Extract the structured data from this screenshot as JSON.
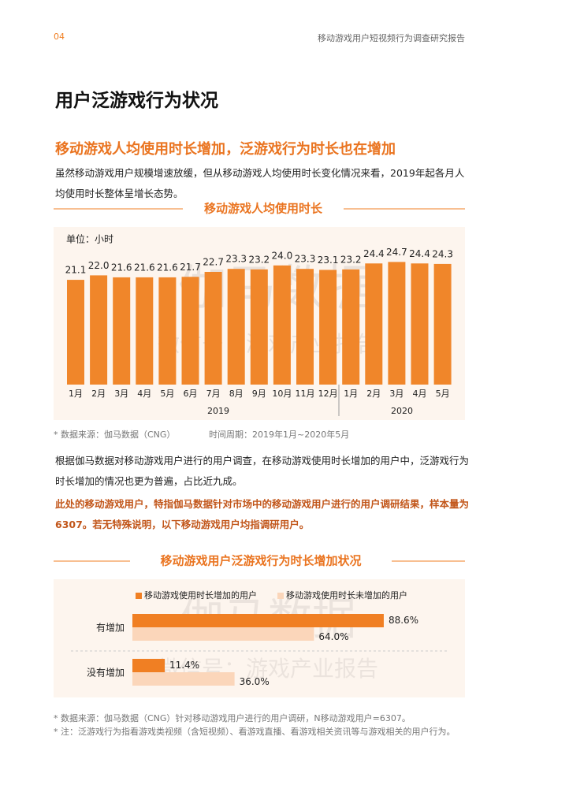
{
  "header": {
    "page": "04",
    "title": "移动游戏用户短视频行为调查研究报告"
  },
  "title": "用户泛游戏行为状况",
  "section1": {
    "subtitle": "移动游戏人均使用时长增加，泛游戏行为时长也在增加",
    "paragraph": "虽然移动游戏用户规模增速放缓，但从移动游戏人均使用时长变化情况来看，2019年起各月人均使用时长整体呈增长态势。",
    "source": "* 数据来源：伽马数据（CNG）",
    "period": "时间周期：2019年1月~2020年5月"
  },
  "section2": {
    "paragraph": "根据伽马数据对移动游戏用户进行的用户调查，在移动游戏使用时长增加的用户中，泛游戏行为时长增加的情况也更为普遍，占比近九成。",
    "highlight": "此处的移动游戏用户，特指伽马数据针对市场中的移动游戏用户进行的用户调研结果，样本量为6307。若无特殊说明，以下移动游戏用户均指调研用户。",
    "notes": [
      "* 数据来源：伽马数据（CNG）针对移动游戏用户进行的用户调研，N移动游戏用户=6307。",
      "* 注：泛游戏行为指看游戏类视频（含短视频）、看游戏直播、看游戏相关资讯等与游戏相关的用户行为。"
    ]
  },
  "watermark": {
    "logo": "伽马数据",
    "wechat": "微信号：游戏产业报告"
  },
  "chart_data": [
    {
      "type": "bar",
      "title": "移动游戏人均使用时长",
      "unit": "单位：小时",
      "color": "#f0862a",
      "categories": [
        "1月",
        "2月",
        "3月",
        "4月",
        "5月",
        "6月",
        "7月",
        "8月",
        "9月",
        "10月",
        "11月",
        "12月",
        "1月",
        "2月",
        "3月",
        "4月",
        "5月"
      ],
      "year_labels": [
        "2019",
        "2020"
      ],
      "values": [
        21.1,
        22.0,
        21.6,
        21.6,
        21.6,
        21.7,
        22.7,
        23.3,
        23.2,
        24.0,
        23.3,
        23.1,
        23.2,
        24.4,
        24.7,
        24.4,
        24.3
      ],
      "value_labels": [
        "21.1",
        "22.0",
        "21.6",
        "21.6",
        "21.6",
        "21.7",
        "22.7",
        "23.3",
        "23.2",
        "24.0",
        "23.3",
        "23.1",
        "23.2",
        "24.4",
        "24.7",
        "24.4",
        "24.3"
      ]
    },
    {
      "type": "hbar",
      "title": "移动游戏用户泛游戏行为时长增加状况",
      "categories": [
        "有增加",
        "没有增加"
      ],
      "series": [
        {
          "name": "移动游戏使用时长增加的用户",
          "color": "#f07f23",
          "values": [
            88.6,
            11.4
          ],
          "value_labels": [
            "88.6%",
            "11.4%"
          ]
        },
        {
          "name": "移动游戏使用时长未增加的用户",
          "color": "#fbd6ba",
          "values": [
            64.0,
            36.0
          ],
          "value_labels": [
            "64.0%",
            "36.0%"
          ]
        }
      ]
    }
  ]
}
